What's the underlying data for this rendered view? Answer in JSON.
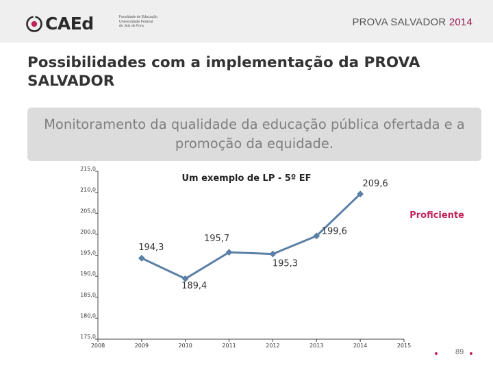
{
  "header": {
    "logo_text": "CAEd",
    "institution": "Faculdade de Educação\nUniversidade Federal\nde Juiz de Fora",
    "title_main": "PROVA SALVADOR",
    "title_year": "2014"
  },
  "slide": {
    "title": "Possibilidades com a implementação da PROVA SALVADOR",
    "banner": "Monitoramento da qualidade da educação pública ofertada e a promoção da equidade."
  },
  "colors": {
    "line": "#5b7fa6",
    "accent": "#c0245c"
  },
  "chart_data": {
    "type": "line",
    "title": "Um exemplo de LP - 5º EF",
    "legend": "Proficiente",
    "legend_position": "right",
    "x": [
      "2008",
      "2009",
      "2010",
      "2011",
      "2012",
      "2013",
      "2014",
      "2015"
    ],
    "ylim": [
      175,
      215
    ],
    "yticks": [
      "175,0",
      "180,0",
      "185,0",
      "190,0",
      "195,0",
      "200,0",
      "205,0",
      "210,0",
      "215,0"
    ],
    "grid": false,
    "series": [
      {
        "name": "Proficiente",
        "points": [
          {
            "x": "2009",
            "y": 194.3,
            "label": "194,3"
          },
          {
            "x": "2010",
            "y": 189.4,
            "label": "189,4"
          },
          {
            "x": "2011",
            "y": 195.7,
            "label": "195,7"
          },
          {
            "x": "2012",
            "y": 195.3,
            "label": "195,3"
          },
          {
            "x": "2013",
            "y": 199.6,
            "label": "199,6"
          },
          {
            "x": "2014",
            "y": 209.6,
            "label": "209,6"
          }
        ]
      }
    ]
  },
  "footer": {
    "page": "89"
  }
}
